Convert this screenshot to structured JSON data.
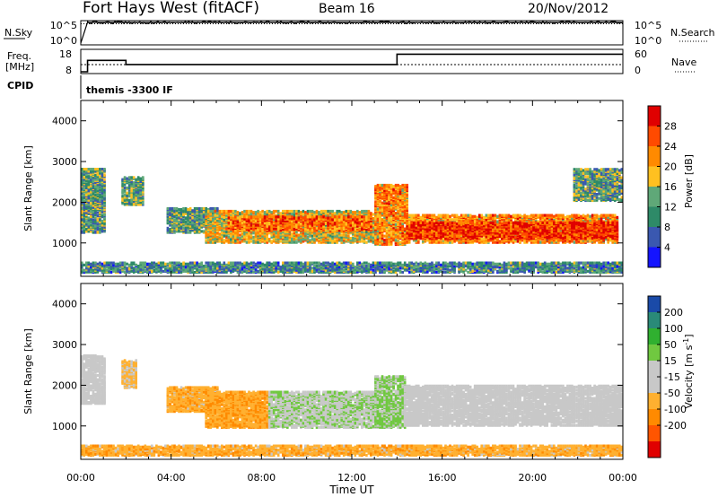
{
  "header": {
    "station": "Fort Hays West (fitACF)",
    "beam": "Beam 16",
    "date": "20/Nov/2012"
  },
  "sky_panel": {
    "left_label": "N.Sky",
    "left_ticks": [
      "10^5",
      "10^0"
    ],
    "right_label": "N.Search",
    "right_ticks": [
      "10^5",
      "10^0"
    ]
  },
  "freq_panel": {
    "left_label_1": "Freq.",
    "left_label_2": "[MHz]",
    "left_ticks": [
      "18",
      "8"
    ],
    "right_label": "Nave",
    "right_ticks": [
      "60",
      "0"
    ]
  },
  "cpid": {
    "label": "CPID",
    "value": "themis -3300 IF"
  },
  "time_axis": {
    "ticks": [
      "00:00",
      "04:00",
      "08:00",
      "12:00",
      "16:00",
      "20:00",
      "00:00"
    ],
    "label": "Time UT"
  },
  "power_panel": {
    "ylabel": "Slant Range [km]",
    "yticks": [
      "4000",
      "3000",
      "2000",
      "1000"
    ],
    "cbar_label": "Power [dB]",
    "cbar_ticks": [
      "28",
      "24",
      "20",
      "16",
      "12",
      "8",
      "4"
    ]
  },
  "velocity_panel": {
    "ylabel": "Slant Range [km]",
    "yticks": [
      "4000",
      "3000",
      "2000",
      "1000"
    ],
    "cbar_label": "Velocity [m s",
    "cbar_label_sup": "-1",
    "cbar_label_end": "]",
    "cbar_ticks": [
      "200",
      "100",
      "50",
      "15",
      "-15",
      "-50",
      "-100",
      "-200"
    ]
  },
  "chart_data": [
    {
      "type": "line",
      "title": "",
      "series": [
        {
          "name": "N.Sky",
          "x_hours": [
            0,
            0.3,
            24
          ],
          "values": [
            1,
            100000,
            100000
          ]
        },
        {
          "name": "N.Search",
          "x_hours": [
            0,
            24
          ],
          "values": [
            100000,
            100000
          ]
        }
      ],
      "xlim": [
        0,
        24
      ]
    },
    {
      "type": "line",
      "series": [
        {
          "name": "Freq.",
          "x_hours": [
            0,
            0.3,
            2.0,
            14.0,
            24
          ],
          "values": [
            8,
            13.5,
            11.5,
            16.5,
            16.5
          ],
          "ylim": [
            8,
            18
          ]
        },
        {
          "name": "Nave",
          "x_hours": [
            0,
            24
          ],
          "values": [
            21,
            21
          ],
          "ylim": [
            0,
            60
          ]
        }
      ],
      "xlim": [
        0,
        24
      ]
    },
    {
      "type": "heatmap",
      "variable": "Power",
      "units": "dB",
      "xlim": [
        0,
        24
      ],
      "ylim": [
        180,
        4500
      ],
      "colorbar": {
        "min": 0,
        "max": 32,
        "colors": [
          "#1414ff",
          "#3a58b0",
          "#2e8a68",
          "#5fa878",
          "#ffc020",
          "#ff8a00",
          "#ff4a00",
          "#e00000"
        ]
      },
      "regions": [
        {
          "t": [
            0,
            1.0
          ],
          "r": [
            1200,
            2800
          ],
          "v": 12
        },
        {
          "t": [
            1.8,
            2.8
          ],
          "r": [
            1900,
            2600
          ],
          "v": 12
        },
        {
          "t": [
            3.8,
            6.0
          ],
          "r": [
            1200,
            1800
          ],
          "v": 12
        },
        {
          "t": [
            5.5,
            13.2
          ],
          "r": [
            950,
            1750
          ],
          "v": 18
        },
        {
          "t": [
            6.5,
            12.8
          ],
          "r": [
            1250,
            1600
          ],
          "v": 24
        },
        {
          "t": [
            13.0,
            14.4
          ],
          "r": [
            900,
            2400
          ],
          "v": 22
        },
        {
          "t": [
            14.4,
            23.8
          ],
          "r": [
            950,
            1650
          ],
          "v": 22
        },
        {
          "t": [
            14.4,
            23.8
          ],
          "r": [
            1050,
            1450
          ],
          "v": 28
        },
        {
          "t": [
            21.8,
            24
          ],
          "r": [
            2000,
            2800
          ],
          "v": 12
        },
        {
          "t": [
            0,
            24
          ],
          "r": [
            200,
            450
          ],
          "v": 10
        }
      ]
    },
    {
      "type": "heatmap",
      "variable": "Velocity",
      "units": "m s^-1",
      "xlim": [
        0,
        24
      ],
      "ylim": [
        180,
        4500
      ],
      "colorbar": {
        "min": -250,
        "max": 250,
        "colors": [
          "#e00000",
          "#ff5500",
          "#ff8a00",
          "#ffb030",
          "#c8c8c8",
          "#c8c8c8",
          "#70c840",
          "#30b030",
          "#2a8a78",
          "#1a4aa8"
        ]
      },
      "regions": [
        {
          "t": [
            0,
            1.0
          ],
          "r": [
            1500,
            2700
          ],
          "v": 0
        },
        {
          "t": [
            1.8,
            2.5
          ],
          "r": [
            1900,
            2600
          ],
          "v": -60
        },
        {
          "t": [
            3.8,
            6.0
          ],
          "r": [
            1300,
            1900
          ],
          "v": -80
        },
        {
          "t": [
            5.5,
            8.3
          ],
          "r": [
            900,
            1800
          ],
          "v": -90
        },
        {
          "t": [
            8.3,
            13.0
          ],
          "r": [
            900,
            1800
          ],
          "v": 40
        },
        {
          "t": [
            13.0,
            14.3
          ],
          "r": [
            900,
            2200
          ],
          "v": 60
        },
        {
          "t": [
            14.3,
            24
          ],
          "r": [
            950,
            1950
          ],
          "v": 0
        },
        {
          "t": [
            0,
            24
          ],
          "r": [
            200,
            450
          ],
          "v": -80
        }
      ]
    }
  ]
}
